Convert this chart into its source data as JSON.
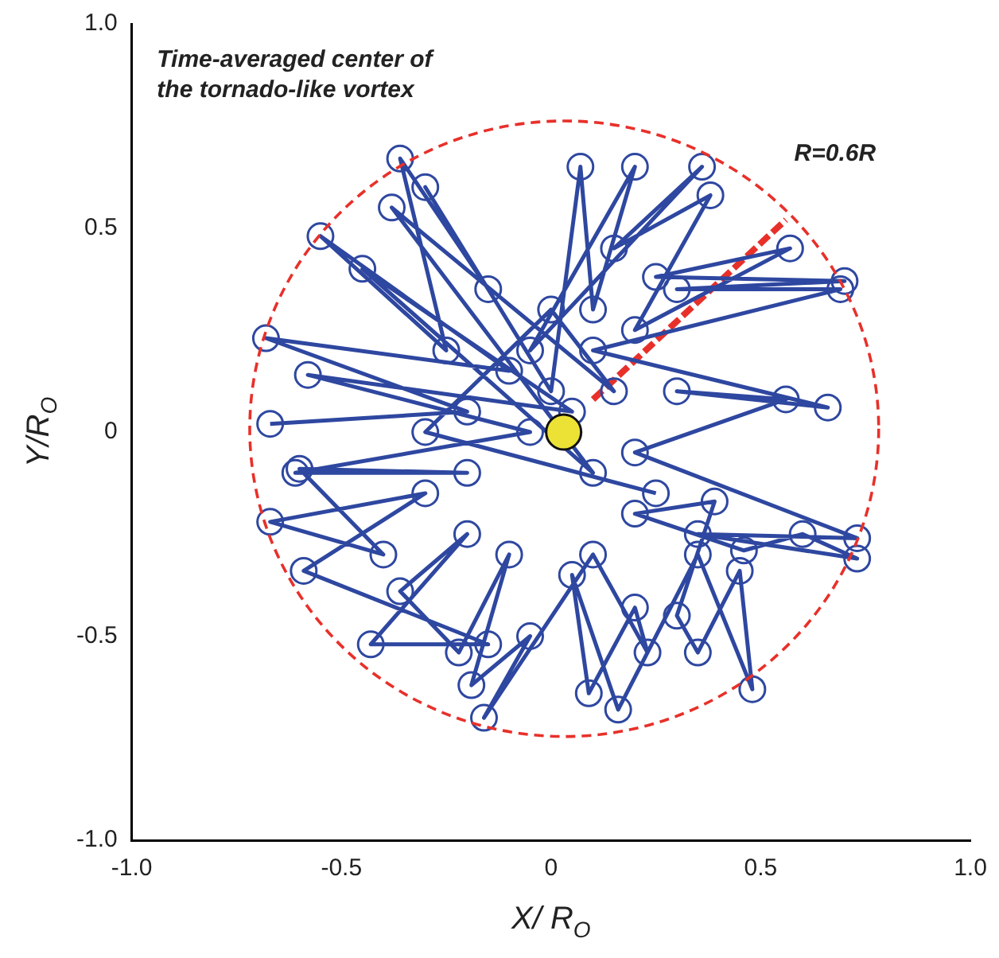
{
  "chart_data": {
    "type": "line",
    "xlabel": "X/ R$_{O}$",
    "ylabel": "Y/R$_{O}$",
    "xlim": [
      -1,
      1
    ],
    "ylim": [
      -1,
      1
    ],
    "xticks": [
      {
        "value": -1,
        "label": "-1.0"
      },
      {
        "value": -0.5,
        "label": "-0.5"
      },
      {
        "value": 0,
        "label": "0"
      },
      {
        "value": 0.5,
        "label": "0.5"
      },
      {
        "value": 1,
        "label": "1.0"
      }
    ],
    "yticks": [
      {
        "value": -1,
        "label": "-1.0"
      },
      {
        "value": -0.5,
        "label": "-0.5"
      },
      {
        "value": 0,
        "label": "0"
      },
      {
        "value": 0.5,
        "label": "0.5"
      },
      {
        "value": 1,
        "label": "1.0"
      }
    ],
    "grid": false,
    "legend": false,
    "annotations": [
      "Time-averaged center of the tornado-like vortex",
      "R=0.6R"
    ],
    "series": [
      {
        "marker": "circle",
        "line_style": "solid",
        "color": "#2e47a0",
        "x": [
          -0.67,
          -0.2,
          -0.68,
          -0.1,
          -0.55,
          -0.25,
          -0.36,
          -0.15,
          -0.3,
          0.0,
          0.07,
          0.1,
          0.2,
          -0.05,
          0.36,
          0.15,
          0.38,
          0.2,
          0.57,
          0.25,
          0.7,
          0.3,
          0.69,
          0.1,
          0.66,
          0.3,
          0.56,
          0.2,
          0.73,
          0.35,
          0.73,
          0.6,
          0.46,
          0.2,
          0.39,
          0.3,
          0.35,
          0.45,
          0.48,
          0.35,
          0.16,
          0.05,
          0.09,
          0.2,
          0.23,
          0.1,
          -0.16,
          -0.05,
          -0.19,
          -0.1,
          -0.22,
          -0.36,
          -0.2,
          -0.43,
          -0.15,
          -0.59,
          -0.3,
          -0.67,
          -0.4,
          -0.6,
          -0.2,
          -0.61,
          -0.05,
          -0.58,
          0.05,
          -0.45,
          0.1,
          -0.38,
          0.15,
          0.0,
          -0.3,
          0.25
        ],
        "values": [
          0.02,
          0.05,
          0.23,
          0.15,
          0.48,
          0.2,
          0.67,
          0.35,
          0.6,
          0.1,
          0.65,
          0.3,
          0.65,
          0.2,
          0.65,
          0.45,
          0.58,
          0.25,
          0.45,
          0.38,
          0.37,
          0.35,
          0.35,
          0.2,
          0.06,
          0.1,
          0.08,
          -0.05,
          -0.26,
          -0.25,
          -0.31,
          -0.25,
          -0.29,
          -0.2,
          -0.17,
          -0.45,
          -0.54,
          -0.34,
          -0.63,
          -0.3,
          -0.68,
          -0.35,
          -0.64,
          -0.43,
          -0.54,
          -0.3,
          -0.7,
          -0.5,
          -0.62,
          -0.3,
          -0.54,
          -0.39,
          -0.25,
          -0.52,
          -0.52,
          -0.34,
          -0.15,
          -0.22,
          -0.3,
          -0.09,
          -0.1,
          -0.1,
          0.0,
          0.14,
          0.05,
          0.4,
          -0.1,
          0.55,
          0.1,
          0.3,
          0.0,
          -0.15
        ]
      },
      {
        "marker": "none",
        "line_style": "dashed",
        "color": "#e8302a",
        "x": [
          0.1,
          0.56
        ],
        "values": [
          0.08,
          0.52
        ]
      },
      {
        "type": "scatter",
        "marker": "circle",
        "color": "#ece236",
        "x": [
          0.03
        ],
        "values": [
          0.0
        ]
      }
    ]
  }
}
